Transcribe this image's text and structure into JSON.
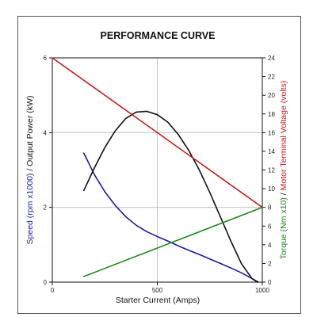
{
  "chart_data": {
    "type": "line",
    "title": "PERFORMANCE CURVE",
    "xlabel": "Starter Current (Amps)",
    "xlim": [
      0,
      1000
    ],
    "x_ticks": [
      0,
      500,
      1000
    ],
    "left_axis": {
      "ylim": [
        0,
        6
      ],
      "ticks": [
        0,
        2,
        4,
        6
      ],
      "label_parts": [
        {
          "text": "Speed (rpm x1000)",
          "color": "#1a1aa6"
        },
        {
          "text": "  /  ",
          "color": "#111111"
        },
        {
          "text": "Output Power (kW)",
          "color": "#111111"
        }
      ]
    },
    "right_axis": {
      "ylim": [
        0,
        24
      ],
      "ticks": [
        0,
        2,
        4,
        6,
        8,
        10,
        12,
        14,
        16,
        18,
        20,
        22,
        24
      ],
      "label_parts": [
        {
          "text": "Torque (Nm x10)",
          "color": "#1a8a1a"
        },
        {
          "text": "  /  ",
          "color": "#111111"
        },
        {
          "text": "Motor Terminal Voltage (volts)",
          "color": "#cc1a1a"
        }
      ]
    },
    "grid": true,
    "series": [
      {
        "id": "speed",
        "color": "#1a1aa6",
        "axis": "left",
        "x": [
          150,
          200,
          250,
          300,
          350,
          400,
          450,
          500,
          550,
          600,
          650,
          700,
          750,
          800,
          850,
          900,
          950,
          975
        ],
        "y": [
          3.45,
          2.88,
          2.42,
          2.05,
          1.75,
          1.52,
          1.35,
          1.22,
          1.1,
          0.97,
          0.85,
          0.74,
          0.62,
          0.5,
          0.38,
          0.25,
          0.1,
          0.0
        ]
      },
      {
        "id": "output_power",
        "color": "#111111",
        "axis": "left",
        "x": [
          150,
          200,
          250,
          300,
          350,
          400,
          450,
          500,
          550,
          600,
          650,
          700,
          750,
          800,
          850,
          900,
          950,
          980
        ],
        "y": [
          2.45,
          3.05,
          3.6,
          4.05,
          4.38,
          4.55,
          4.57,
          4.48,
          4.28,
          3.95,
          3.52,
          3.0,
          2.4,
          1.75,
          1.1,
          0.5,
          0.1,
          0.0
        ]
      },
      {
        "id": "motor_terminal_voltage",
        "color": "#cc1a1a",
        "axis": "right",
        "x": [
          0,
          1000
        ],
        "y": [
          24,
          8
        ]
      },
      {
        "id": "torque",
        "color": "#1a8a1a",
        "axis": "right",
        "x": [
          150,
          1000
        ],
        "y": [
          0.6,
          8
        ]
      }
    ]
  }
}
